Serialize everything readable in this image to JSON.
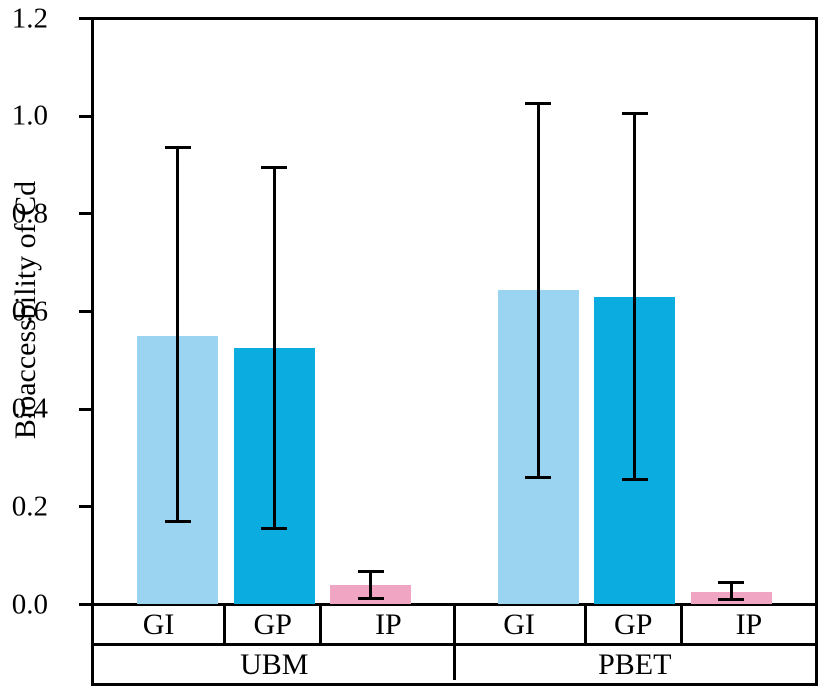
{
  "chart_data": {
    "type": "bar",
    "title": "",
    "xlabel": "",
    "ylabel": "Bioaccessbility of Cd",
    "ylim": [
      0,
      1.2
    ],
    "ytick_labels": [
      "0.0",
      "0.2",
      "0.4",
      "0.6",
      "0.8",
      "1.0",
      "1.2"
    ],
    "grid": false,
    "legend": "none",
    "colors": {
      "GI": "#9BD4F0",
      "GP": "#0BADE0",
      "IP": "#F0A6C2"
    },
    "axis_color": "#000000",
    "groups": [
      {
        "name": "UBM",
        "bars": [
          {
            "label": "GI",
            "value": 0.55,
            "whisker_low": 0.17,
            "whisker_high": 0.935
          },
          {
            "label": "GP",
            "value": 0.525,
            "whisker_low": 0.155,
            "whisker_high": 0.895
          },
          {
            "label": "IP",
            "value": 0.04,
            "whisker_low": 0.012,
            "whisker_high": 0.068
          }
        ]
      },
      {
        "name": "PBET",
        "bars": [
          {
            "label": "GI",
            "value": 0.645,
            "whisker_low": 0.26,
            "whisker_high": 1.025
          },
          {
            "label": "GP",
            "value": 0.63,
            "whisker_low": 0.255,
            "whisker_high": 1.005
          },
          {
            "label": "IP",
            "value": 0.025,
            "whisker_low": 0.01,
            "whisker_high": 0.045
          }
        ]
      }
    ]
  }
}
